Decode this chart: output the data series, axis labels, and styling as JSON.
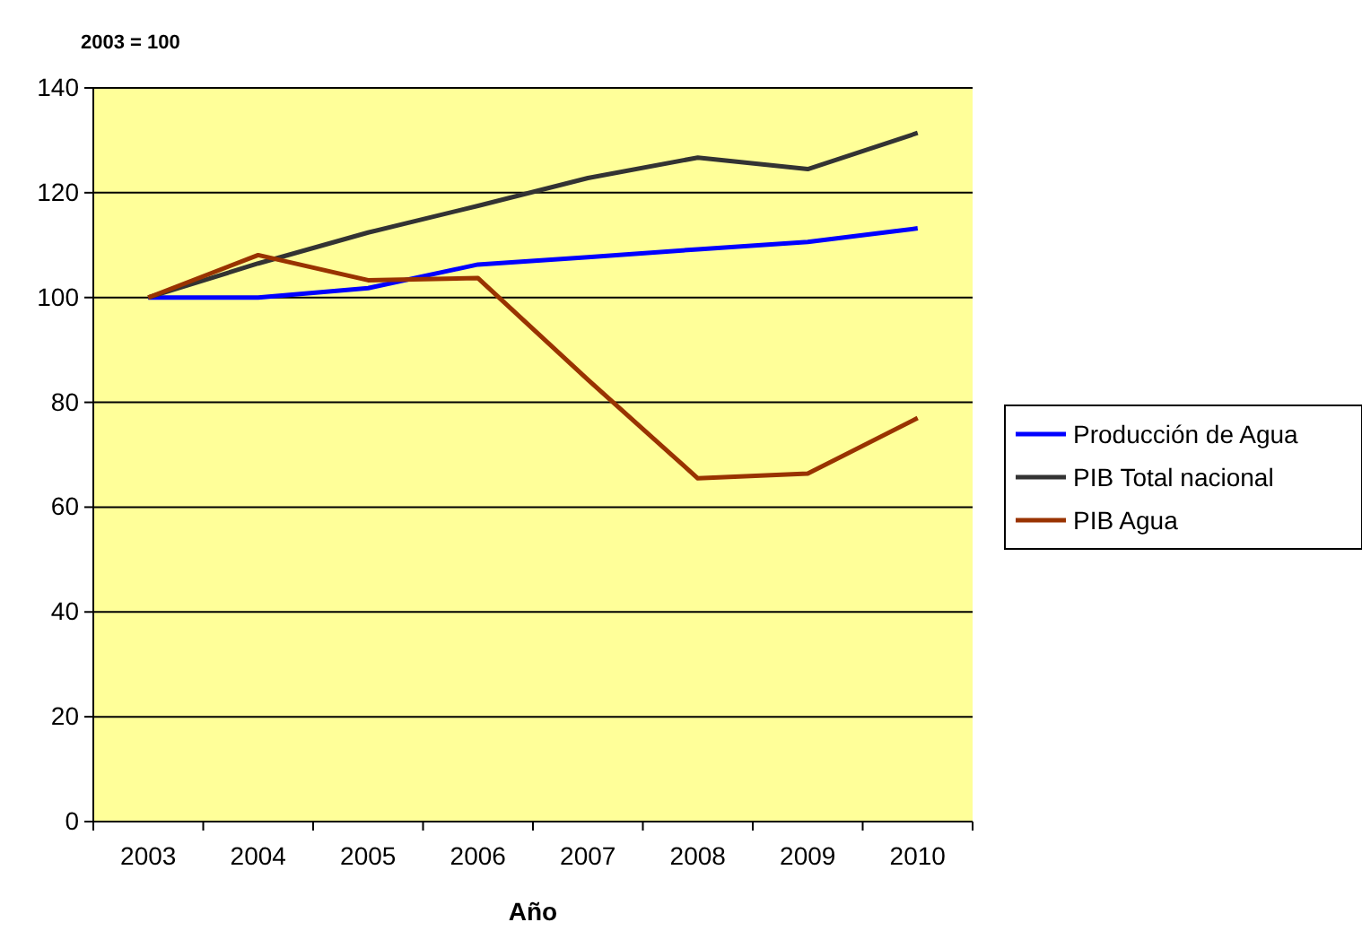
{
  "chart_data": {
    "type": "line",
    "title": "2003 = 100",
    "xlabel": "Año",
    "categories": [
      "2003",
      "2004",
      "2005",
      "2006",
      "2007",
      "2008",
      "2009",
      "2010"
    ],
    "series": [
      {
        "name": "Producción de Agua",
        "color": "#0000ff",
        "values": [
          100,
          100,
          101.8,
          106.3,
          107.7,
          109.2,
          110.6,
          113.2
        ]
      },
      {
        "name": "PIB Total nacional",
        "color": "#333333",
        "values": [
          100,
          106.5,
          112.4,
          117.5,
          122.8,
          126.7,
          124.5,
          131.4
        ]
      },
      {
        "name": "PIB Agua",
        "color": "#993300",
        "values": [
          100,
          108.1,
          103.3,
          103.7,
          84.3,
          65.5,
          66.4,
          77
        ]
      }
    ],
    "ylim": [
      0,
      140
    ],
    "yticks": [
      0,
      20,
      40,
      60,
      80,
      100,
      120,
      140
    ],
    "grid": "y",
    "legend": "right",
    "marker": "none",
    "line_style": "solid"
  }
}
